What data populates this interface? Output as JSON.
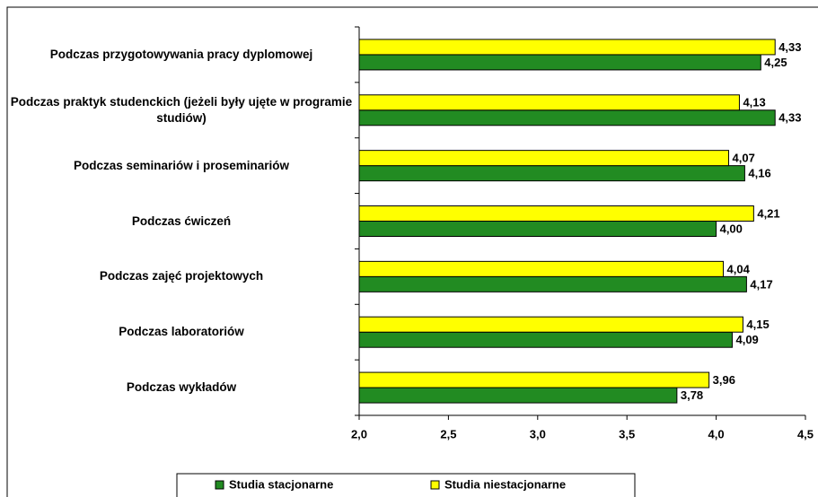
{
  "chart_data": {
    "type": "hbar",
    "categories": [
      "Podczas przygotowywania pracy dyplomowej",
      "Podczas praktyk studenckich (jeżeli były ujęte w programie studiów)",
      "Podczas seminariów i proseminariów",
      "Podczas ćwiczeń",
      "Podczas zajęć projektowych",
      "Podczas laboratoriów",
      "Podczas wykładów"
    ],
    "series": [
      {
        "name": "Studia stacjonarne",
        "color": "#228b22",
        "values": [
          4.25,
          4.33,
          4.16,
          4.0,
          4.17,
          4.09,
          3.78
        ],
        "value_labels": [
          "4,25",
          "4,33",
          "4,16",
          "4,00",
          "4,17",
          "4,09",
          "3,78"
        ]
      },
      {
        "name": "Studia niestacjonarne",
        "color": "#ffff00",
        "values": [
          4.33,
          4.13,
          4.07,
          4.21,
          4.04,
          4.15,
          3.96
        ],
        "value_labels": [
          "4,33",
          "4,13",
          "4,07",
          "4,21",
          "4,04",
          "4,15",
          "3,96"
        ]
      }
    ],
    "xlim": [
      2.0,
      4.5
    ],
    "xticks": [
      {
        "value": 2.0,
        "label": "2,0"
      },
      {
        "value": 2.5,
        "label": "2,5"
      },
      {
        "value": 3.0,
        "label": "3,0"
      },
      {
        "value": 3.5,
        "label": "3,5"
      },
      {
        "value": 4.0,
        "label": "4,0"
      },
      {
        "value": 4.5,
        "label": "4,5"
      }
    ],
    "grid": false,
    "legend": "bottom"
  }
}
